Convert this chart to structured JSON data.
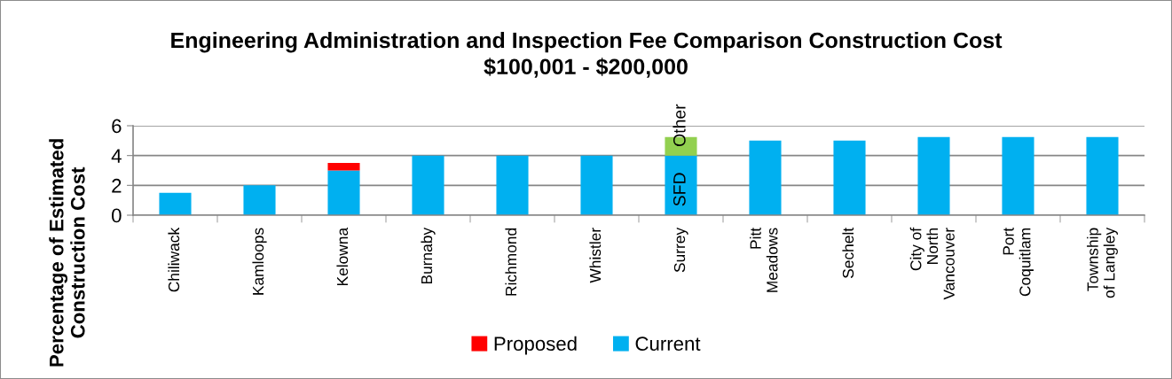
{
  "chart_data": {
    "type": "bar",
    "title": "Engineering Administration and Inspection Fee Comparison Construction Cost\n$100,001 - $200,000",
    "ylabel": "Percentage of Estimated\nConstruction Cost",
    "categories": [
      "Chiliwack",
      "Kamloops",
      "Kelowna",
      "Burnaby",
      "Richmond",
      "Whistler",
      "Surrey",
      "Pitt\nMeadows",
      "Sechelt",
      "City of\nNorth\nVancouver",
      "Port\nCoquitlam",
      "Township\nof Langley"
    ],
    "stacked": true,
    "series": [
      {
        "name": "Current",
        "color": "#00b0f0",
        "values": [
          1.5,
          2,
          3,
          4,
          4,
          4,
          4,
          5,
          5,
          5.25,
          5.25,
          5.25
        ],
        "value_labels": [
          null,
          null,
          null,
          null,
          null,
          null,
          "SFD",
          null,
          null,
          null,
          null,
          null
        ]
      },
      {
        "name": "Proposed",
        "color": "#ff0000",
        "values": [
          null,
          null,
          0.5,
          null,
          null,
          null,
          null,
          null,
          null,
          null,
          null,
          null
        ]
      },
      {
        "color": "#92d050",
        "values": [
          null,
          null,
          null,
          null,
          null,
          null,
          1.25,
          null,
          null,
          null,
          null,
          null
        ],
        "value_labels": [
          null,
          null,
          null,
          null,
          null,
          null,
          "Other",
          null,
          null,
          null,
          null,
          null
        ]
      }
    ],
    "ylim": [
      0,
      6
    ],
    "yticks": [
      0,
      2,
      4,
      6
    ],
    "grid": "y",
    "legend": "bottom"
  }
}
